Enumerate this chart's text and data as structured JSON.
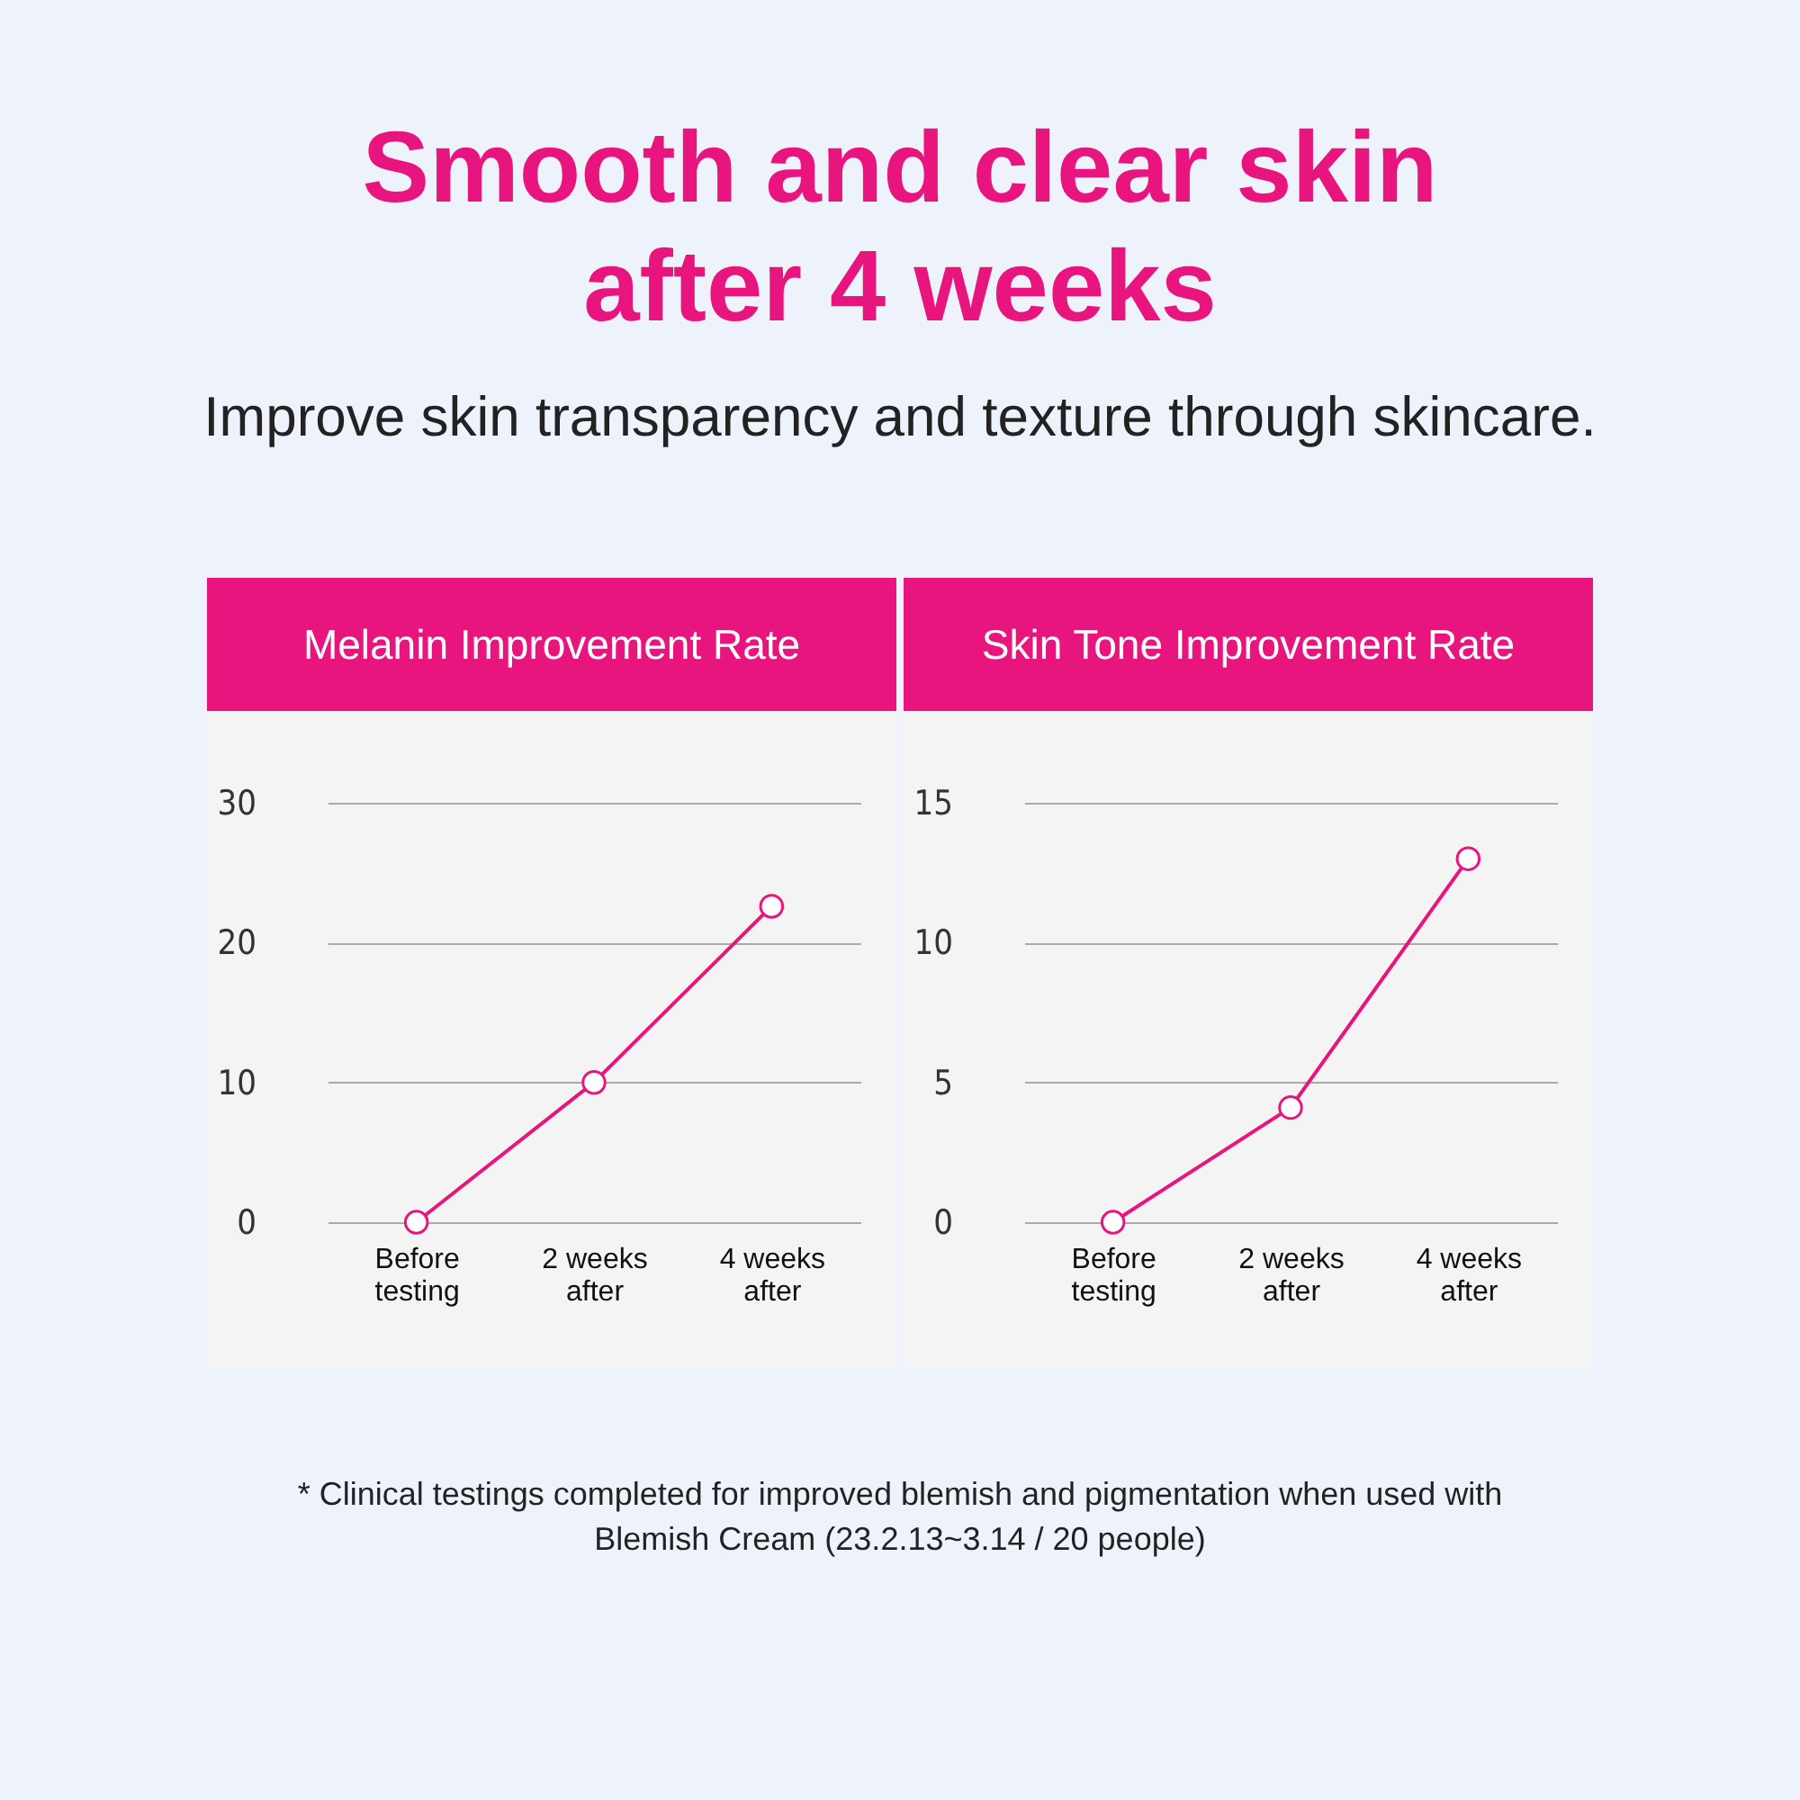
{
  "chart_data": [
    {
      "type": "line",
      "title": "Melanin Improvement Rate",
      "categories": [
        "Before testing",
        "2 weeks after",
        "4 weeks after"
      ],
      "series": [
        {
          "color": "#e8157f",
          "values": [
            0,
            10,
            22.6
          ]
        }
      ],
      "ylim": [
        0,
        30
      ],
      "yticks": [
        0,
        10,
        20,
        30
      ],
      "grid": "y",
      "marker": "circle",
      "line_style": "solid",
      "annotations": [
        "Smooth and clear skin after 4 weeks",
        "Improve skin transparency and texture through skincare.",
        "* Clinical testings completed for improved blemish and pigmentation when used with Blemish Cream (23.2.13~3.14 / 20 people)"
      ]
    },
    {
      "type": "line",
      "title": "Skin Tone Improvement Rate",
      "categories": [
        "Before testing",
        "2 weeks after",
        "4 weeks after"
      ],
      "series": [
        {
          "color": "#e8157f",
          "values": [
            0,
            4.1,
            13.0
          ]
        }
      ],
      "ylim": [
        0,
        15
      ],
      "yticks": [
        0,
        5,
        10,
        15
      ],
      "grid": "y",
      "marker": "circle",
      "line_style": "solid"
    }
  ]
}
